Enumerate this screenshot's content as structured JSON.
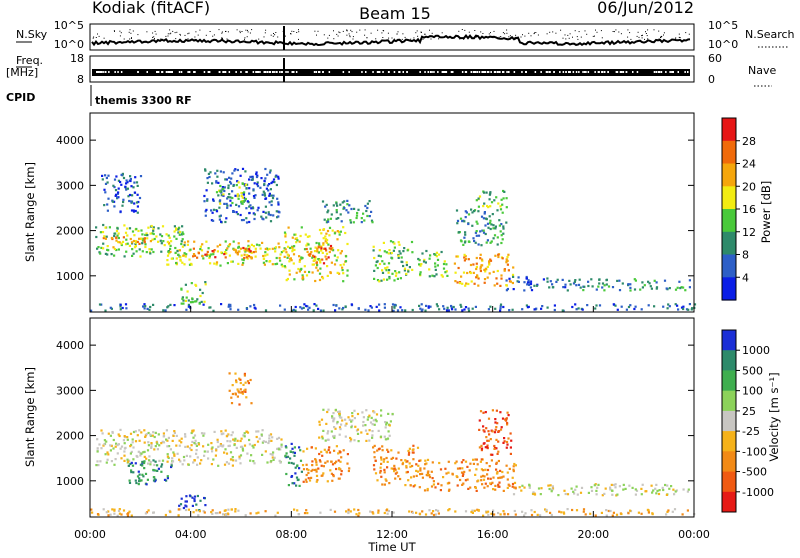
{
  "header": {
    "station": "Kodiak (fitACF)",
    "beam": "Beam 15",
    "date": "06/Jun/2012"
  },
  "chart_data": [
    {
      "type": "line",
      "panel": "noise",
      "left_label": "N.Sky",
      "right_label": "N.Search",
      "left_ticks": [
        "10^5",
        "10^0"
      ],
      "right_ticks": [
        "10^5",
        "10^0"
      ]
    },
    {
      "type": "line",
      "panel": "frequency",
      "left_label_1": "Freq.",
      "left_label_2": "[MHz]",
      "right_label": "Nave",
      "left_ticks": [
        "18",
        "8"
      ],
      "right_ticks": [
        "60",
        "0"
      ],
      "cpid_label": "CPID",
      "cpid_text": "themis 3300 RF"
    },
    {
      "type": "heatmap",
      "panel": "power",
      "ylabel": "Slant Range [km]",
      "yticks": [
        1000,
        2000,
        3000,
        4000
      ],
      "ylim": [
        200,
        4600
      ],
      "xlim": [
        0,
        24
      ],
      "colorbar_label": "Power [dB]",
      "colorbar_ticks": [
        "4",
        "8",
        "12",
        "16",
        "20",
        "24",
        "28"
      ],
      "colors": [
        "#0a1ee6",
        "#2d5fc7",
        "#2e8a6a",
        "#49c93a",
        "#f2ec12",
        "#f5a60c",
        "#f06a0a",
        "#e61616"
      ],
      "bands": [
        {
          "x0": 0.2,
          "x1": 3.8,
          "y0": 1450,
          "y1": 2150,
          "level": 3
        },
        {
          "x0": 0.5,
          "x1": 2.5,
          "y0": 1650,
          "y1": 1900,
          "level": 5
        },
        {
          "x0": 3.0,
          "x1": 7.6,
          "y0": 1250,
          "y1": 1800,
          "level": 4
        },
        {
          "x0": 4.0,
          "x1": 6.5,
          "y0": 1400,
          "y1": 1650,
          "level": 6
        },
        {
          "x0": 4.5,
          "x1": 7.5,
          "y0": 2200,
          "y1": 3400,
          "level": 1
        },
        {
          "x0": 5.0,
          "x1": 6.2,
          "y0": 2600,
          "y1": 3100,
          "level": 3
        },
        {
          "x0": 0.4,
          "x1": 2.0,
          "y0": 2400,
          "y1": 3300,
          "level": 1
        },
        {
          "x0": 3.5,
          "x1": 4.6,
          "y0": 400,
          "y1": 900,
          "level": 3
        },
        {
          "x0": 7.6,
          "x1": 10.2,
          "y0": 900,
          "y1": 2100,
          "level": 4
        },
        {
          "x0": 8.5,
          "x1": 9.6,
          "y0": 1300,
          "y1": 1700,
          "level": 6
        },
        {
          "x0": 9.2,
          "x1": 11.2,
          "y0": 2200,
          "y1": 2700,
          "level": 2
        },
        {
          "x0": 11.2,
          "x1": 12.8,
          "y0": 900,
          "y1": 1800,
          "level": 3
        },
        {
          "x0": 13.0,
          "x1": 14.2,
          "y0": 1000,
          "y1": 1600,
          "level": 3
        },
        {
          "x0": 14.4,
          "x1": 16.8,
          "y0": 800,
          "y1": 1500,
          "level": 5
        },
        {
          "x0": 14.5,
          "x1": 16.5,
          "y0": 1700,
          "y1": 2500,
          "level": 2
        },
        {
          "x0": 15.3,
          "x1": 16.6,
          "y0": 2500,
          "y1": 2900,
          "level": 3
        },
        {
          "x0": 16.5,
          "x1": 19.0,
          "y0": 700,
          "y1": 1000,
          "level": 1
        },
        {
          "x0": 19.0,
          "x1": 23.8,
          "y0": 700,
          "y1": 950,
          "level": 2
        },
        {
          "x0": 0.0,
          "x1": 24.0,
          "y0": 250,
          "y1": 400,
          "level": 1
        }
      ]
    },
    {
      "type": "heatmap",
      "panel": "velocity",
      "ylabel": "Slant Range [km]",
      "yticks": [
        1000,
        2000,
        3000,
        4000
      ],
      "ylim": [
        200,
        4600
      ],
      "xlim": [
        0,
        24
      ],
      "xticks": [
        "00:00",
        "04:00",
        "08:00",
        "12:00",
        "16:00",
        "20:00",
        "00:00"
      ],
      "xlabel": "Time UT",
      "colorbar_label": "Velocity [m s⁻¹]",
      "colorbar_ticks": [
        "1000",
        "500",
        "100",
        "25",
        "-25",
        "-100",
        "-500",
        "-1000"
      ],
      "colors": [
        "#1b2fd6",
        "#2d8a6a",
        "#3fae4f",
        "#8cd25a",
        "#c8c6c2",
        "#f5b21a",
        "#f28a16",
        "#f05a12",
        "#e61a16"
      ],
      "bands": [
        {
          "x0": 0.2,
          "x1": 7.6,
          "y0": 1350,
          "y1": 2150,
          "level": 4
        },
        {
          "x0": 1.5,
          "x1": 3.2,
          "y0": 900,
          "y1": 1500,
          "level": 1
        },
        {
          "x0": 3.4,
          "x1": 4.6,
          "y0": 350,
          "y1": 700,
          "level": 0
        },
        {
          "x0": 5.5,
          "x1": 6.4,
          "y0": 2700,
          "y1": 3400,
          "level": 6
        },
        {
          "x0": 7.7,
          "x1": 8.4,
          "y0": 900,
          "y1": 1900,
          "level": 1
        },
        {
          "x0": 8.4,
          "x1": 10.3,
          "y0": 1000,
          "y1": 1800,
          "level": 6
        },
        {
          "x0": 9.0,
          "x1": 12.0,
          "y0": 1900,
          "y1": 2600,
          "level": 4
        },
        {
          "x0": 11.2,
          "x1": 13.0,
          "y0": 900,
          "y1": 1800,
          "level": 6
        },
        {
          "x0": 13.0,
          "x1": 16.9,
          "y0": 800,
          "y1": 1500,
          "level": 6
        },
        {
          "x0": 15.4,
          "x1": 16.7,
          "y0": 1600,
          "y1": 2600,
          "level": 7
        },
        {
          "x0": 16.8,
          "x1": 23.8,
          "y0": 700,
          "y1": 950,
          "level": 4
        },
        {
          "x0": 0.0,
          "x1": 24.0,
          "y0": 250,
          "y1": 400,
          "level": 5
        }
      ]
    }
  ]
}
